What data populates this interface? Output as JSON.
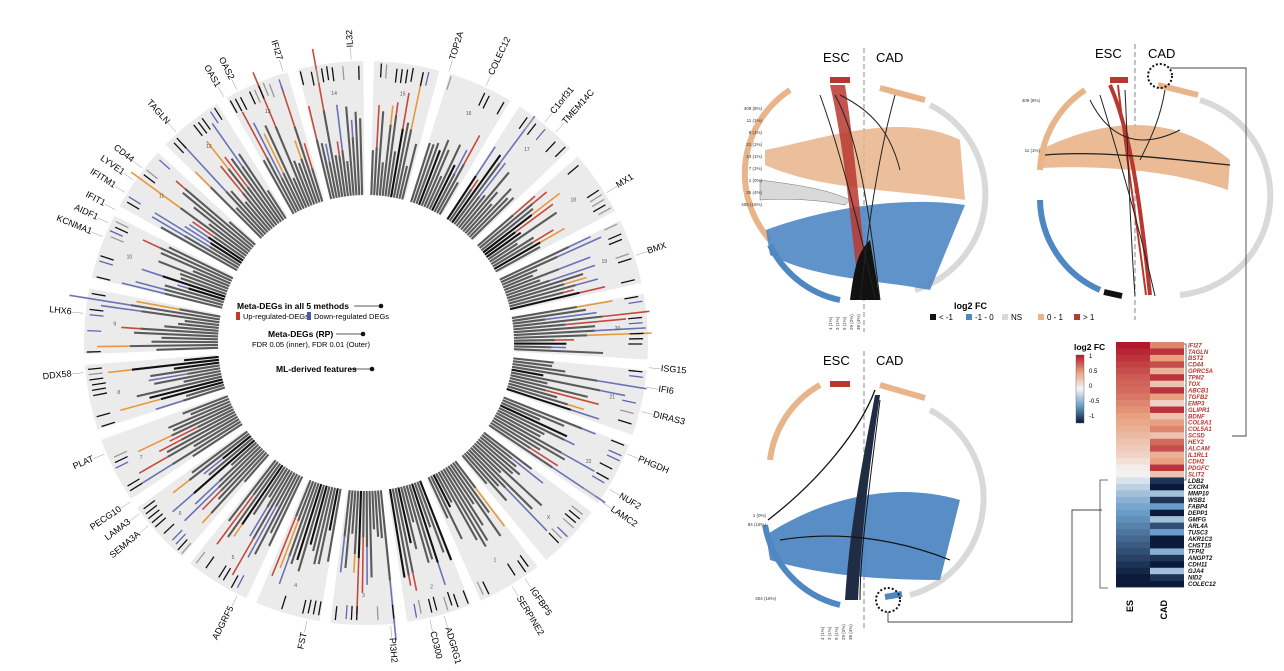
{
  "circos": {
    "center_labels": {
      "meta_all": "Meta-DEGs in all 5 methods",
      "up": "Up-regulated-DEGs",
      "down": "Down-regulated DEGs",
      "meta_rp": "Meta-DEGs (RP)",
      "fdr": "FDR 0.05 (inner), FDR 0.01 (Outer)",
      "ml": "ML-derived features"
    },
    "gene_labels": [
      {
        "text": "IL32",
        "a": -3
      },
      {
        "text": "TOP2A",
        "a": 17
      },
      {
        "text": "COLEC12",
        "a": 25
      },
      {
        "text": "C1orf31",
        "a": 39
      },
      {
        "text": "TMEM14C",
        "a": 42
      },
      {
        "text": "MX1",
        "a": 58
      },
      {
        "text": "BMX",
        "a": 72
      },
      {
        "text": "ISG15",
        "a": 95
      },
      {
        "text": "IFI6",
        "a": 99
      },
      {
        "text": "DIRAS3",
        "a": 104
      },
      {
        "text": "PHGDH",
        "a": 113
      },
      {
        "text": "NUF2",
        "a": 121
      },
      {
        "text": "LAMC2",
        "a": 124
      },
      {
        "text": "IGFBP5",
        "a": 146
      },
      {
        "text": "SERPINE2",
        "a": 149
      },
      {
        "text": "ADGRG1",
        "a": 164
      },
      {
        "text": "CD300",
        "a": 167
      },
      {
        "text": "PI3H2",
        "a": 175
      },
      {
        "text": "FST",
        "a": 192
      },
      {
        "text": "ADGRF5",
        "a": 207
      },
      {
        "text": "SEMA3A",
        "a": 230
      },
      {
        "text": "LAMA3",
        "a": 233
      },
      {
        "text": "PECG10",
        "a": 236
      },
      {
        "text": "PLAT",
        "a": 247
      },
      {
        "text": "DDX58",
        "a": 264
      },
      {
        "text": "LHX6",
        "a": 276
      },
      {
        "text": "KCNMA1",
        "a": 292
      },
      {
        "text": "AIDF1",
        "a": 295
      },
      {
        "text": "IFIT1",
        "a": 298
      },
      {
        "text": "IFITM1",
        "a": 302
      },
      {
        "text": "LYVE1",
        "a": 305
      },
      {
        "text": "CD44",
        "a": 308
      },
      {
        "text": "TAGLN",
        "a": 318
      },
      {
        "text": "OAS1",
        "a": 330
      },
      {
        "text": "OAS2",
        "a": 333
      },
      {
        "text": "IFI27",
        "a": 343
      }
    ],
    "sector_numbers": [
      "14",
      "15",
      "16",
      "17",
      "18",
      "19",
      "20",
      "21",
      "22",
      "X",
      "1",
      "2",
      "3",
      "4",
      "5",
      "6",
      "7",
      "8",
      "9",
      "10",
      "11",
      "12",
      "13"
    ]
  },
  "chords": {
    "esc_label": "ESC",
    "cad_label": "CAD",
    "panel1_ticks": [
      "409 (8%)",
      "11 (1%)",
      "8 (1%)",
      "21 (1%)",
      "24 (1%)",
      "7 (1%)",
      "1 (0%)",
      "35 (4%)",
      "406 (16%)",
      "4 (1%)",
      "3 (1%)",
      "9 (1%)",
      "29 (2%)",
      "38 (4%)"
    ],
    "panel2_ticks": [
      "409 (8%)",
      "11 (1%)"
    ],
    "panel3_ticks": [
      "1 (0%)",
      "84 (16%)",
      "404 (16%)",
      "4 (1%)",
      "3 (1%)",
      "9 (1%)",
      "29 (2%)",
      "38 (4%)"
    ]
  },
  "legend": {
    "title": "log2 FC",
    "items": [
      {
        "label": "< -1",
        "color": "#111111"
      },
      {
        "label": "-1 - 0",
        "color": "#4f87c3"
      },
      {
        "label": "NS",
        "color": "#d9d9d9"
      },
      {
        "label": "0 - 1",
        "color": "#e8b48a"
      },
      {
        "label": "> 1",
        "color": "#b8372f"
      }
    ]
  },
  "heatmap": {
    "title": "log2 FC",
    "scale_ticks": [
      "1",
      "0.5",
      "0",
      "-0.5",
      "-1"
    ],
    "col_labels": [
      "ES",
      "CAD"
    ],
    "genes_up": [
      "IFI27",
      "TAGLN",
      "BST2",
      "CD44",
      "GPRC5A",
      "TPM2",
      "TOX",
      "ABCB1",
      "TGFB2",
      "EMP3",
      "GLIPR1",
      "BDNF",
      "COL8A1",
      "COL5A1",
      "SCSD",
      "HEY2",
      "ALCAM",
      "IL1RL1",
      "CDH2",
      "PDGFC",
      "SLIT2"
    ],
    "genes_down": [
      "LDB2",
      "CXCR4",
      "MMP10",
      "WSB1",
      "FABP4",
      "DEPP1",
      "GMFG",
      "ARL4A",
      "TUSC3",
      "AKR1C3",
      "CHST15",
      "TFPI2",
      "ANGPT2",
      "CDH11",
      "GJA4",
      "NID2",
      "COLEC12"
    ],
    "es_values": [
      1.0,
      0.95,
      0.9,
      0.85,
      0.8,
      0.75,
      0.72,
      0.7,
      0.65,
      0.6,
      0.55,
      0.5,
      0.45,
      0.4,
      0.35,
      0.3,
      0.25,
      0.2,
      0.12,
      0.05,
      0.02,
      -0.1,
      -0.2,
      -0.3,
      -0.38,
      -0.45,
      -0.5,
      -0.55,
      -0.6,
      -0.65,
      -0.7,
      -0.75,
      -0.8,
      -0.85,
      -0.9,
      -0.95,
      -1.0,
      -1.0
    ],
    "cad_values": [
      0.6,
      0.9,
      0.5,
      0.8,
      0.4,
      0.9,
      0.3,
      0.9,
      0.5,
      0.2,
      0.9,
      0.3,
      0.5,
      0.6,
      0.3,
      0.7,
      0.8,
      0.4,
      0.5,
      0.9,
      0.3,
      -0.9,
      -1.0,
      -0.3,
      -0.9,
      -0.5,
      -1.0,
      -0.3,
      -0.8,
      -0.5,
      -1.0,
      -1.0,
      -0.4,
      -0.9,
      -1.0,
      -0.3,
      -0.9,
      -1.0
    ]
  }
}
